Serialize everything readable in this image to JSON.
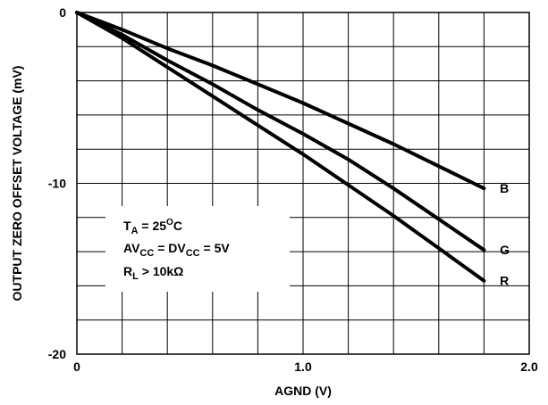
{
  "chart_data": {
    "type": "line",
    "xlabel": "AGND (V)",
    "ylabel": "OUTPUT ZERO OFFSET VOLTAGE (mV)",
    "xlim": [
      0,
      2.0
    ],
    "ylim": [
      -20,
      0
    ],
    "x_ticks": [
      0,
      1.0,
      2.0
    ],
    "x_tick_labels": [
      "0",
      "1.0",
      "2.0"
    ],
    "y_ticks": [
      0,
      -10,
      -20
    ],
    "y_tick_labels": [
      "0",
      "-10",
      "-20"
    ],
    "x_minor_step": 0.2,
    "y_minor_step": 2,
    "grid": true,
    "series": [
      {
        "name": "B",
        "x": [
          0,
          0.2,
          0.4,
          0.6,
          0.8,
          1.0,
          1.2,
          1.4,
          1.6,
          1.8
        ],
        "y": [
          0,
          -1.0,
          -2.1,
          -3.1,
          -4.2,
          -5.3,
          -6.5,
          -7.7,
          -9.0,
          -10.3
        ]
      },
      {
        "name": "G",
        "x": [
          0,
          0.2,
          0.4,
          0.6,
          0.8,
          1.0,
          1.2,
          1.4,
          1.6,
          1.8
        ],
        "y": [
          0,
          -1.3,
          -2.8,
          -4.2,
          -5.7,
          -7.1,
          -8.6,
          -10.3,
          -12.1,
          -13.9
        ]
      },
      {
        "name": "R",
        "x": [
          0,
          0.2,
          0.4,
          0.6,
          0.8,
          1.0,
          1.2,
          1.4,
          1.6,
          1.8
        ],
        "y": [
          0,
          -1.5,
          -3.2,
          -4.9,
          -6.6,
          -8.3,
          -10.1,
          -11.9,
          -13.8,
          -15.7
        ]
      }
    ],
    "annotation": {
      "line1_main": "T",
      "line1_sub": "A",
      "line1_rest": " = 25",
      "line1_sup": "O",
      "line1_end": "C",
      "line2_a": "AV",
      "line2_a_sub": "CC",
      "line2_mid": " = DV",
      "line2_b_sub": "CC",
      "line2_end": " = 5V",
      "line3_main": "R",
      "line3_sub": "L",
      "line3_end": " > 10kΩ"
    }
  }
}
